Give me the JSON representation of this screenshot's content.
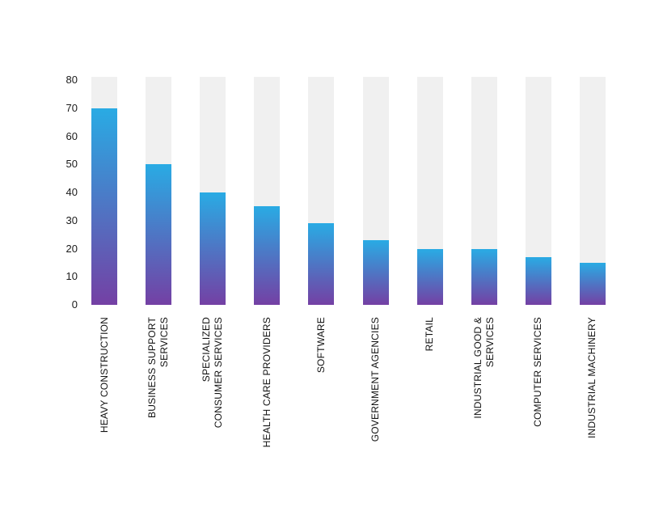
{
  "chart_data": {
    "type": "bar",
    "title": "",
    "subtitle": "",
    "xlabel": "",
    "ylabel": "",
    "categories": [
      "HEAVY CONSTRUCTION",
      "BUSINESS SUPPORT SERVICES",
      "SPECIALIZED CONSUMER SERVICES",
      "HEALTH CARE PROVIDERS",
      "SOFTWARE",
      "GOVERNMENT AGENCIES",
      "RETAIL",
      "INDUSTRIAL GOOD & SERVICES",
      "COMPUTER SERVICES",
      "INDUSTRIAL MACHINERY"
    ],
    "category_label_lines": [
      [
        "HEAVY CONSTRUCTION"
      ],
      [
        "BUSINESS SUPPORT",
        "SERVICES"
      ],
      [
        "SPECIALIZED",
        "CONSUMER SERVICES"
      ],
      [
        "HEALTH CARE PROVIDERS"
      ],
      [
        "SOFTWARE"
      ],
      [
        "GOVERNMENT AGENCIES"
      ],
      [
        "RETAIL"
      ],
      [
        "INDUSTRIAL GOOD &",
        "SERVICES"
      ],
      [
        "COMPUTER SERVICES"
      ],
      [
        "INDUSTRIAL MACHINERY"
      ]
    ],
    "values": [
      70,
      50,
      40,
      35,
      29,
      23,
      20,
      20,
      17,
      15
    ],
    "ylim": [
      0,
      80
    ],
    "yticks": [
      0,
      10,
      20,
      30,
      40,
      50,
      60,
      70,
      80
    ],
    "grid": false,
    "legend": null,
    "category_label_rotation_deg": -90,
    "colors": {
      "bar_gradient_top": "#29abe4",
      "bar_gradient_bottom": "#7440a4",
      "track": "#f0f0f0",
      "tick_text": "#1a1a1a",
      "category_text": "#111111",
      "background": "#ffffff"
    }
  }
}
